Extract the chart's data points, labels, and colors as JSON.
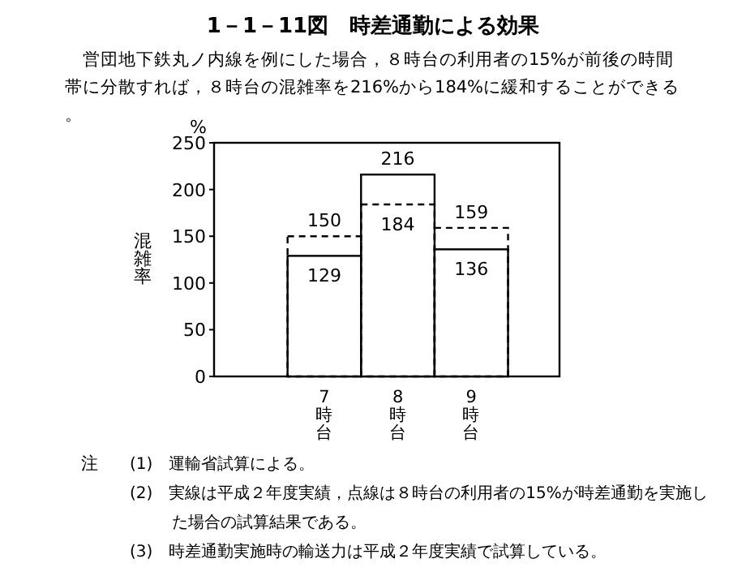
{
  "chart_data": {
    "type": "bar",
    "title": "1－1－11図　時差通勤による効果",
    "subtitle": "営団地下鉄丸ノ内線を例にした場合，８時台の利用者の15%が前後の時間帯に分散すれば，８時台の混雑率を216%から184%に緩和することができる。",
    "ylabel": "混雑率",
    "categories": [
      null,
      "7時台",
      "8時台",
      "9時台",
      null
    ],
    "series": [
      {
        "color": "#000000",
        "line_style": "solid",
        "values": [
          null,
          129,
          216,
          136,
          null
        ]
      },
      {
        "color": "#000000",
        "line_style": "dashed",
        "values": [
          null,
          150,
          184,
          159,
          null
        ]
      }
    ],
    "ylim": [
      0,
      250
    ],
    "yticks": [
      0,
      50,
      100,
      150,
      200,
      250
    ],
    "data_labels": true,
    "grid": false,
    "annotations": [
      "%",
      "注",
      "(1)　運輸省試算による。",
      "(2)　実線は平成２年度実績，点線は８時台の利用者の15%が時差通勤を実施した場合の試算結果である。",
      "(3)　時差通勤実施時の輸送力は平成２年度実績で試算している。"
    ]
  }
}
